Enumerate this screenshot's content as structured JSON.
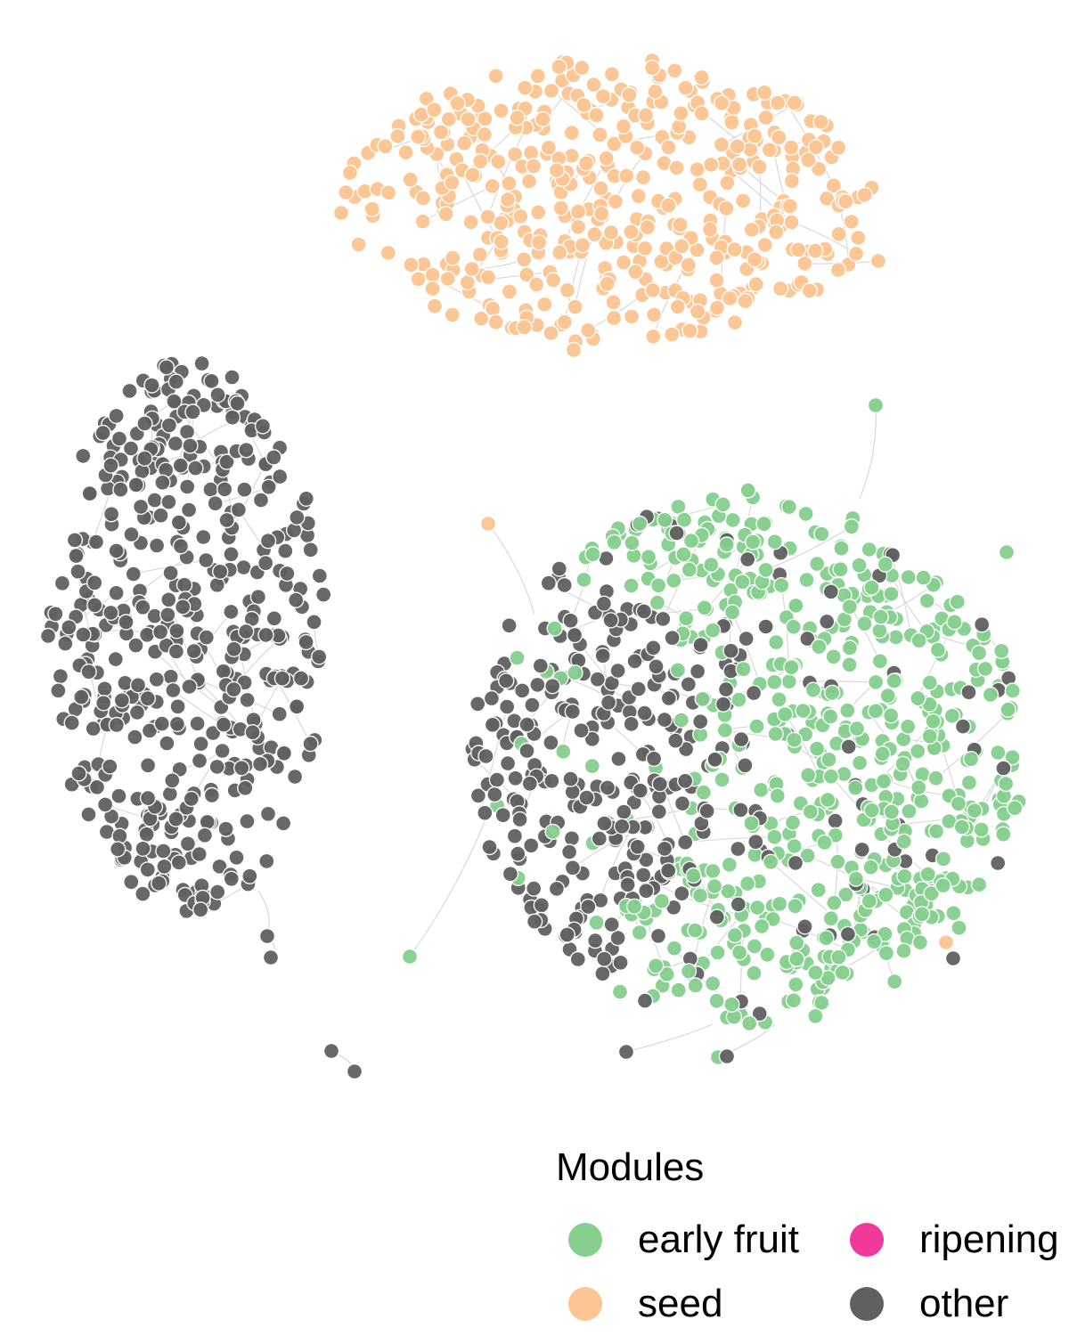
{
  "legend": {
    "title": "Modules",
    "items": [
      {
        "key": "early_fruit",
        "label": "early fruit",
        "color": "#86cf8f"
      },
      {
        "key": "ripening",
        "label": "ripening",
        "color": "#f0399a"
      },
      {
        "key": "seed",
        "label": "seed",
        "color": "#fcc592"
      },
      {
        "key": "other",
        "label": "other",
        "color": "#606060"
      }
    ]
  },
  "colors": {
    "edge": "#cccccc",
    "node_stroke": "#ffffff"
  }
}
